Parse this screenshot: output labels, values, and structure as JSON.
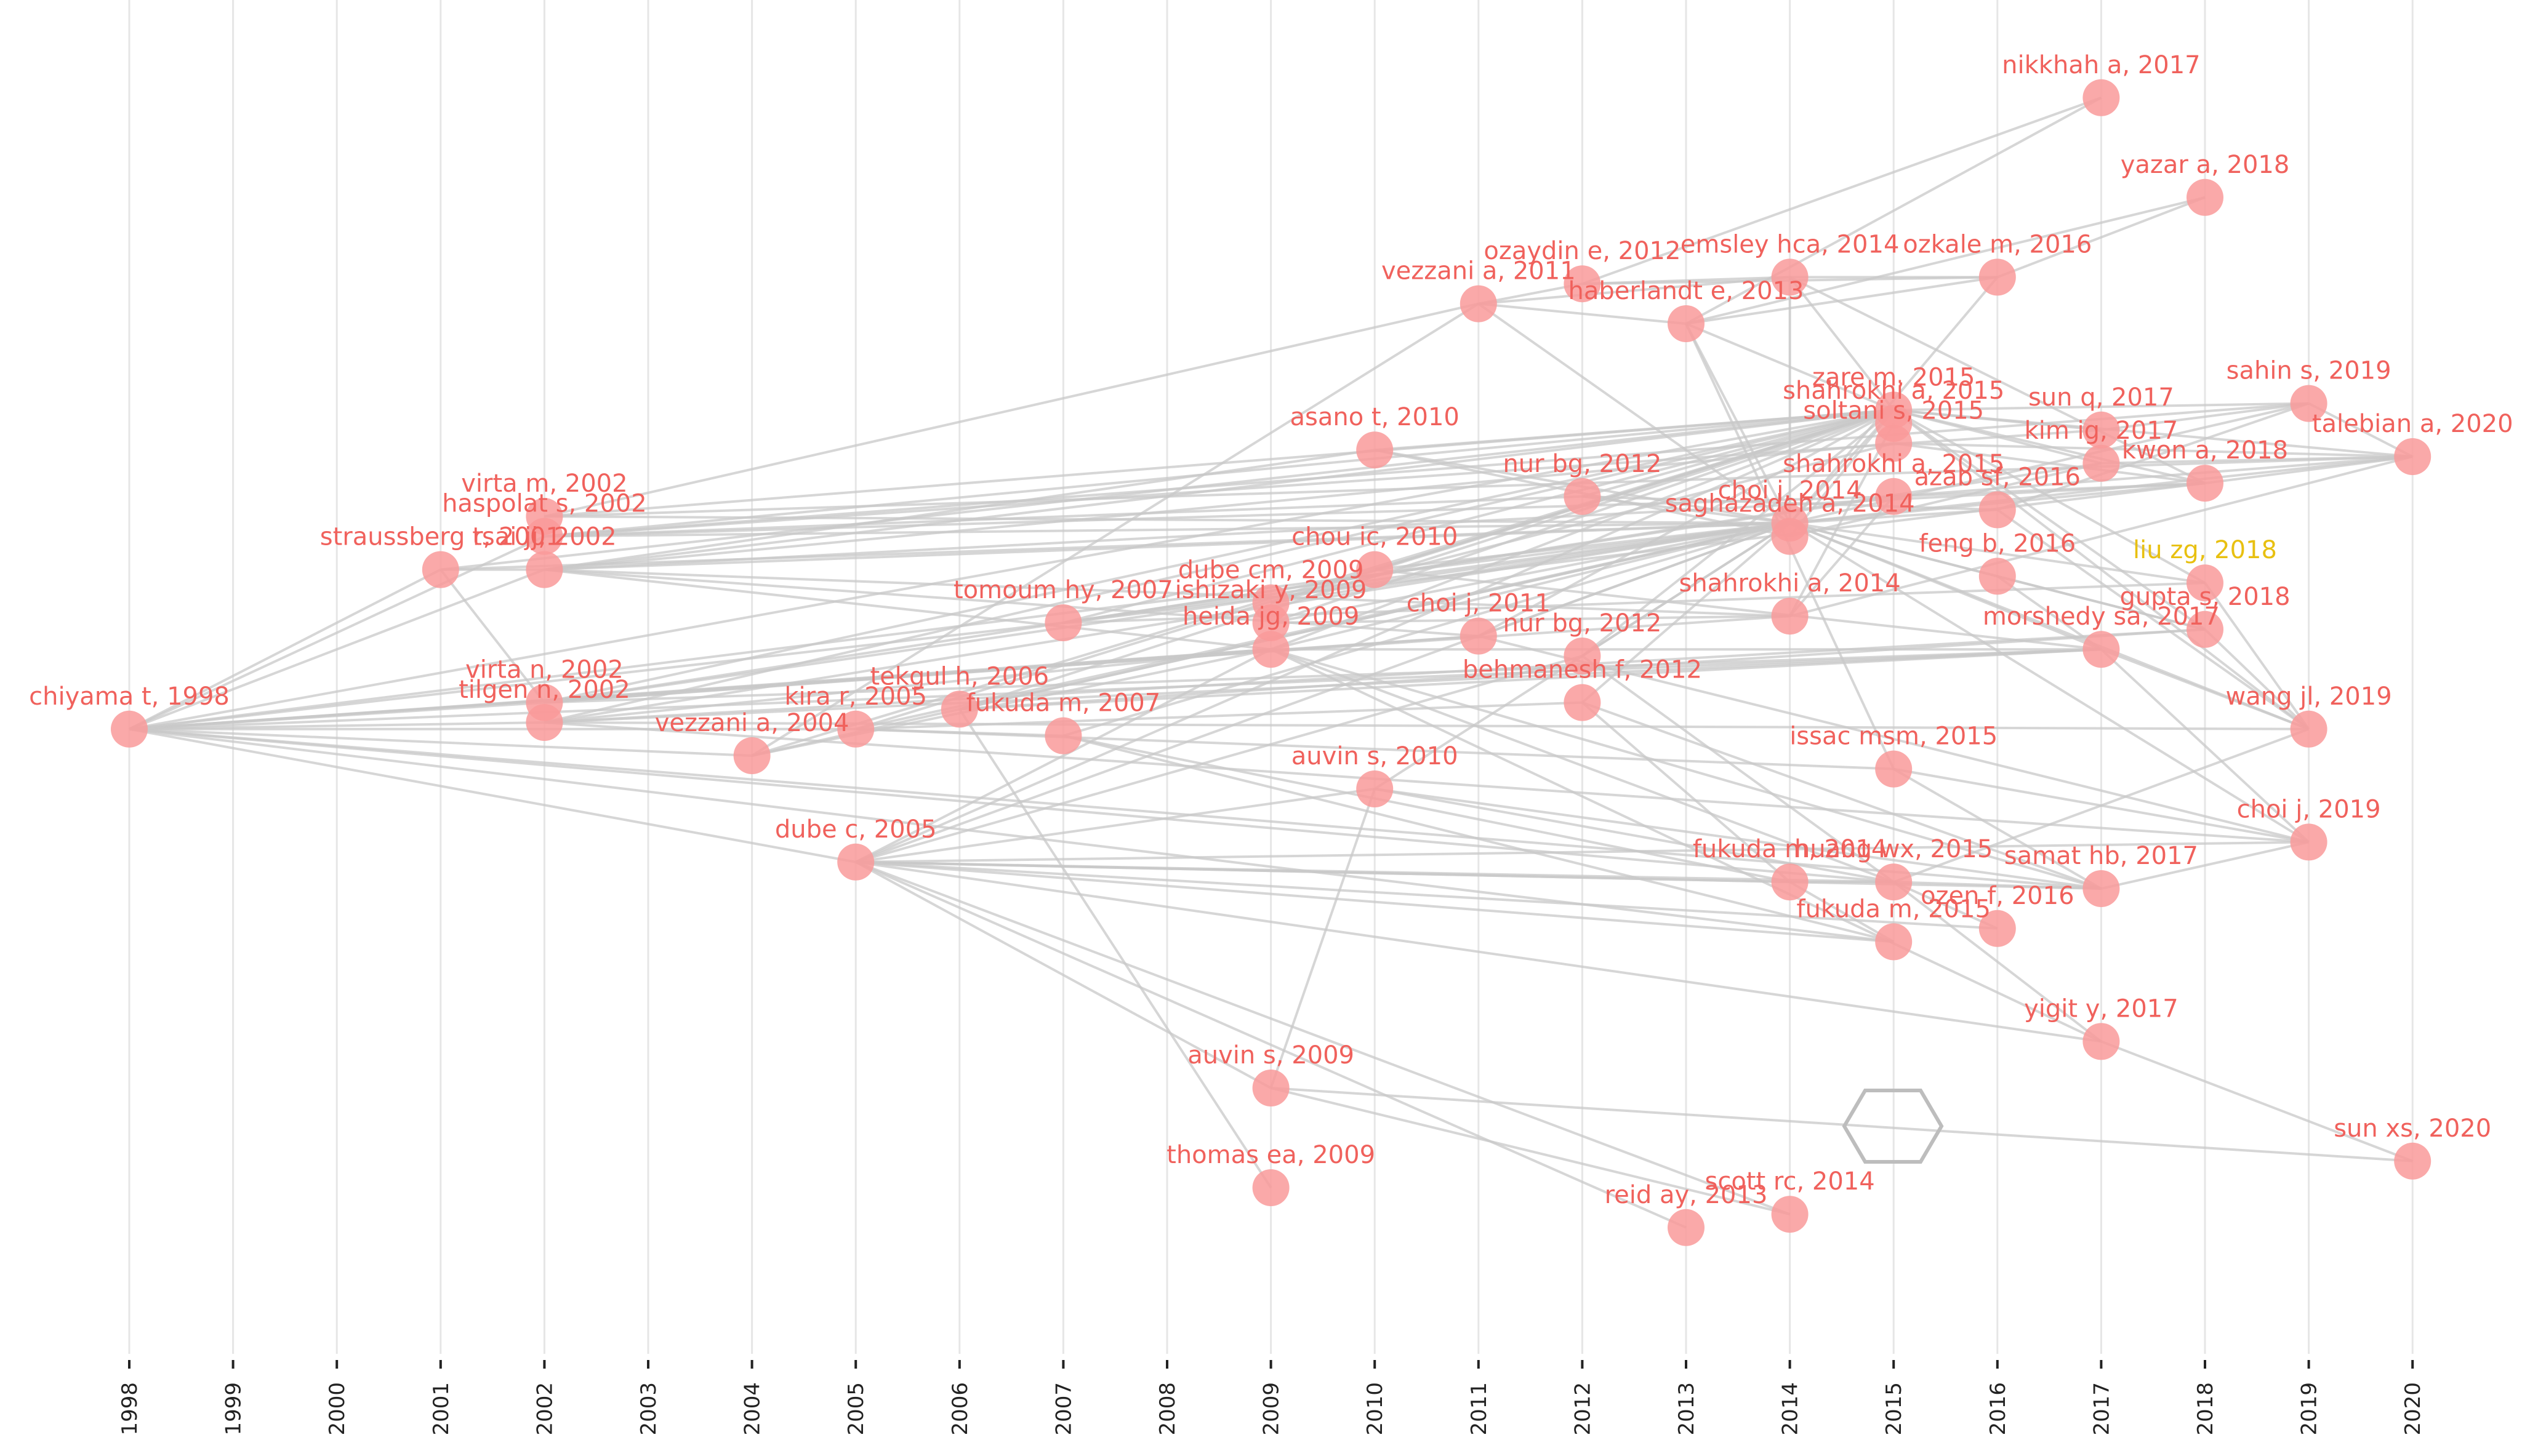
{
  "colors": {
    "node": "#f99a9a",
    "label": "#f0615c",
    "label_highlight": "#e8c010",
    "edge": "#c8c8c8",
    "grid": "#e6e6e6",
    "axis_tick": "#222222",
    "watermark": "#9ecfe0"
  },
  "chart_data": {
    "type": "scatter",
    "xlabel": "",
    "ylabel": "",
    "xlim": [
      1998,
      2020
    ],
    "ylim": [
      0,
      100
    ],
    "years": [
      "1998",
      "1999",
      "2000",
      "2001",
      "2002",
      "2003",
      "2004",
      "2005",
      "2006",
      "2007",
      "2008",
      "2009",
      "2010",
      "2011",
      "2012",
      "2013",
      "2014",
      "2015",
      "2016",
      "2017",
      "2018",
      "2019",
      "2020"
    ],
    "nodes": [
      {
        "id": "chiyama",
        "label": "chiyama t, 1998",
        "x": 1998,
        "y": 47.0
      },
      {
        "id": "straussberg",
        "label": "straussberg r, 2001",
        "x": 2001,
        "y": 59.0
      },
      {
        "id": "virta_m",
        "label": "virta m, 2002",
        "x": 2002,
        "y": 63.0
      },
      {
        "id": "haspolat",
        "label": "haspolat s, 2002",
        "x": 2002,
        "y": 61.5
      },
      {
        "id": "tsai",
        "label": "tsai jj, 2002",
        "x": 2002,
        "y": 59.0
      },
      {
        "id": "virta_n",
        "label": "virta n, 2002",
        "x": 2002,
        "y": 49.0
      },
      {
        "id": "tilgen",
        "label": "tilgen n, 2002",
        "x": 2002,
        "y": 47.5
      },
      {
        "id": "vezzani_2004",
        "label": "vezzani a, 2004",
        "x": 2004,
        "y": 45.0
      },
      {
        "id": "kira",
        "label": "kira r, 2005",
        "x": 2005,
        "y": 47.0
      },
      {
        "id": "dube_2005",
        "label": "dube c, 2005",
        "x": 2005,
        "y": 37.0
      },
      {
        "id": "tekgul",
        "label": "tekgul h, 2006",
        "x": 2006,
        "y": 48.5
      },
      {
        "id": "tomoum",
        "label": "tomoum hy, 2007",
        "x": 2007,
        "y": 55.0
      },
      {
        "id": "fukuda_2007",
        "label": "fukuda m, 2007",
        "x": 2007,
        "y": 46.5
      },
      {
        "id": "dube_cm",
        "label": "dube cm, 2009",
        "x": 2009,
        "y": 56.5
      },
      {
        "id": "heida",
        "label": "heida jg, 2009",
        "x": 2009,
        "y": 53.0
      },
      {
        "id": "ishizaki",
        "label": "ishizaki y, 2009",
        "x": 2009,
        "y": 55.0
      },
      {
        "id": "auvin_2009",
        "label": "auvin s, 2009",
        "x": 2009,
        "y": 20.0
      },
      {
        "id": "thomas",
        "label": "thomas ea, 2009",
        "x": 2009,
        "y": 12.5
      },
      {
        "id": "asano",
        "label": "asano t, 2010",
        "x": 2010,
        "y": 68.0
      },
      {
        "id": "chou",
        "label": "chou ic, 2010",
        "x": 2010,
        "y": 59.0
      },
      {
        "id": "auvin_2010",
        "label": "auvin s, 2010",
        "x": 2010,
        "y": 42.5
      },
      {
        "id": "vezzani_2011",
        "label": "vezzani a, 2011",
        "x": 2011,
        "y": 79.0
      },
      {
        "id": "choi_2011",
        "label": "choi j, 2011",
        "x": 2011,
        "y": 54.0
      },
      {
        "id": "ozaydin",
        "label": "ozaydin e, 2012",
        "x": 2012,
        "y": 80.5
      },
      {
        "id": "nur_2012a",
        "label": "nur bg, 2012",
        "x": 2012,
        "y": 64.5
      },
      {
        "id": "nur_2012b",
        "label": "nur bg, 2012",
        "x": 2012,
        "y": 52.5
      },
      {
        "id": "behmanesh",
        "label": "behmanesh f, 2012",
        "x": 2012,
        "y": 49.0
      },
      {
        "id": "haberlandt",
        "label": "haberlandt e, 2013",
        "x": 2013,
        "y": 77.5
      },
      {
        "id": "reid",
        "label": "reid ay, 2013",
        "x": 2013,
        "y": 9.5
      },
      {
        "id": "emsley",
        "label": "emsley hca, 2014",
        "x": 2014,
        "y": 81.0
      },
      {
        "id": "saghazadeh",
        "label": "saghazadeh a, 2014",
        "x": 2014,
        "y": 61.5
      },
      {
        "id": "choi_2014",
        "label": "choi j, 2014",
        "x": 2014,
        "y": 62.5
      },
      {
        "id": "shahrokhi_2014",
        "label": "shahrokhi a, 2014",
        "x": 2014,
        "y": 55.5
      },
      {
        "id": "fukuda_2014",
        "label": "fukuda m, 2014",
        "x": 2014,
        "y": 35.5
      },
      {
        "id": "scott",
        "label": "scott rc, 2014",
        "x": 2014,
        "y": 10.5
      },
      {
        "id": "zare",
        "label": "zare m, 2015",
        "x": 2015,
        "y": 71.0
      },
      {
        "id": "shahrokhi_2015a",
        "label": "shahrokhi a, 2015",
        "x": 2015,
        "y": 70.0
      },
      {
        "id": "soltani",
        "label": "soltani s, 2015",
        "x": 2015,
        "y": 68.5
      },
      {
        "id": "shahrokhi_2015b",
        "label": "shahrokhi a, 2015",
        "x": 2015,
        "y": 64.5
      },
      {
        "id": "issac",
        "label": "issac msm, 2015",
        "x": 2015,
        "y": 44.0
      },
      {
        "id": "huang",
        "label": "huang wx, 2015",
        "x": 2015,
        "y": 35.5
      },
      {
        "id": "fukuda_2015",
        "label": "fukuda m, 2015",
        "x": 2015,
        "y": 31.0
      },
      {
        "id": "ozkale",
        "label": "ozkale m, 2016",
        "x": 2016,
        "y": 81.0
      },
      {
        "id": "azab",
        "label": "azab sf, 2016",
        "x": 2016,
        "y": 63.5
      },
      {
        "id": "feng",
        "label": "feng b, 2016",
        "x": 2016,
        "y": 58.5
      },
      {
        "id": "ozen",
        "label": "ozen f, 2016",
        "x": 2016,
        "y": 32.0
      },
      {
        "id": "nikkhah",
        "label": "nikkhah a, 2017",
        "x": 2017,
        "y": 94.5
      },
      {
        "id": "sun_q",
        "label": "sun q, 2017",
        "x": 2017,
        "y": 69.5
      },
      {
        "id": "kim",
        "label": "kim ig, 2017",
        "x": 2017,
        "y": 67.0
      },
      {
        "id": "morshedy",
        "label": "morshedy sa, 2017",
        "x": 2017,
        "y": 53.0
      },
      {
        "id": "samat",
        "label": "samat hb, 2017",
        "x": 2017,
        "y": 35.0
      },
      {
        "id": "yigit",
        "label": "yigit y, 2017",
        "x": 2017,
        "y": 23.5
      },
      {
        "id": "yazar",
        "label": "yazar a, 2018",
        "x": 2018,
        "y": 87.0
      },
      {
        "id": "kwon",
        "label": "kwon a, 2018",
        "x": 2018,
        "y": 65.5
      },
      {
        "id": "liu",
        "label": "liu zg, 2018",
        "x": 2018,
        "y": 58.0,
        "highlight": true
      },
      {
        "id": "gupta",
        "label": "gupta s, 2018",
        "x": 2018,
        "y": 54.5
      },
      {
        "id": "sahin",
        "label": "sahin s, 2019",
        "x": 2019,
        "y": 71.5
      },
      {
        "id": "wang",
        "label": "wang jl, 2019",
        "x": 2019,
        "y": 47.0
      },
      {
        "id": "choi_2019",
        "label": "choi j, 2019",
        "x": 2019,
        "y": 38.5
      },
      {
        "id": "talebian",
        "label": "talebian a, 2020",
        "x": 2020,
        "y": 67.5
      },
      {
        "id": "sun_xs",
        "label": "sun xs, 2020",
        "x": 2020,
        "y": 14.5
      }
    ],
    "edges": [
      [
        "chiyama",
        "straussberg"
      ],
      [
        "chiyama",
        "haspolat"
      ],
      [
        "chiyama",
        "tsai"
      ],
      [
        "chiyama",
        "virta_n"
      ],
      [
        "chiyama",
        "tilgen"
      ],
      [
        "chiyama",
        "vezzani_2004"
      ],
      [
        "chiyama",
        "kira"
      ],
      [
        "chiyama",
        "dube_2005"
      ],
      [
        "chiyama",
        "tomoum"
      ],
      [
        "chiyama",
        "heida"
      ],
      [
        "chiyama",
        "choi_2014"
      ],
      [
        "chiyama",
        "zare"
      ],
      [
        "chiyama",
        "shahrokhi_2014"
      ],
      [
        "chiyama",
        "morshedy"
      ],
      [
        "chiyama",
        "fukuda_2015"
      ],
      [
        "chiyama",
        "samat"
      ],
      [
        "chiyama",
        "huang"
      ],
      [
        "chiyama",
        "choi_2011"
      ],
      [
        "straussberg",
        "tsai"
      ],
      [
        "straussberg",
        "virta_n"
      ],
      [
        "straussberg",
        "choi_2014"
      ],
      [
        "straussberg",
        "zare"
      ],
      [
        "virta_m",
        "choi_2014"
      ],
      [
        "virta_m",
        "zare"
      ],
      [
        "virta_m",
        "vezzani_2011"
      ],
      [
        "virta_m",
        "talebian"
      ],
      [
        "haspolat",
        "choi_2014"
      ],
      [
        "haspolat",
        "zare"
      ],
      [
        "haspolat",
        "sun_q"
      ],
      [
        "haspolat",
        "shahrokhi_2015b"
      ],
      [
        "haspolat",
        "sahin"
      ],
      [
        "haspolat",
        "nur_2012a"
      ],
      [
        "tsai",
        "choi_2014"
      ],
      [
        "tsai",
        "zare"
      ],
      [
        "tsai",
        "heida"
      ],
      [
        "tsai",
        "choi_2011"
      ],
      [
        "tsai",
        "shahrokhi_2014"
      ],
      [
        "tsai",
        "soltani"
      ],
      [
        "tsai",
        "kwon"
      ],
      [
        "tsai",
        "asano"
      ],
      [
        "virta_n",
        "choi_2014"
      ],
      [
        "virta_n",
        "zare"
      ],
      [
        "virta_n",
        "heida"
      ],
      [
        "virta_n",
        "choi_2011"
      ],
      [
        "virta_n",
        "morshedy"
      ],
      [
        "virta_n",
        "kim"
      ],
      [
        "tilgen",
        "choi_2014"
      ],
      [
        "tilgen",
        "zare"
      ],
      [
        "tilgen",
        "heida"
      ],
      [
        "tilgen",
        "morshedy"
      ],
      [
        "tilgen",
        "wang"
      ],
      [
        "tilgen",
        "gupta"
      ],
      [
        "tilgen",
        "choi_2019"
      ],
      [
        "vezzani_2004",
        "choi_2014"
      ],
      [
        "vezzani_2004",
        "vezzani_2011"
      ],
      [
        "vezzani_2004",
        "zare"
      ],
      [
        "vezzani_2004",
        "heida"
      ],
      [
        "kira",
        "choi_2014"
      ],
      [
        "kira",
        "zare"
      ],
      [
        "kira",
        "fukuda_2007"
      ],
      [
        "kira",
        "behmanesh"
      ],
      [
        "kira",
        "issac"
      ],
      [
        "dube_2005",
        "choi_2014"
      ],
      [
        "dube_2005",
        "zare"
      ],
      [
        "dube_2005",
        "heida"
      ],
      [
        "dube_2005",
        "fukuda_2014"
      ],
      [
        "dube_2005",
        "huang"
      ],
      [
        "dube_2005",
        "fukuda_2015"
      ],
      [
        "dube_2005",
        "samat"
      ],
      [
        "dube_2005",
        "ozen"
      ],
      [
        "dube_2005",
        "auvin_2010"
      ],
      [
        "dube_2005",
        "nur_2012b"
      ],
      [
        "dube_2005",
        "scott"
      ],
      [
        "dube_2005",
        "reid"
      ],
      [
        "dube_2005",
        "choi_2019"
      ],
      [
        "dube_2005",
        "yigit"
      ],
      [
        "dube_2005",
        "auvin_2009"
      ],
      [
        "tekgul",
        "choi_2014"
      ],
      [
        "tekgul",
        "zare"
      ],
      [
        "tekgul",
        "morshedy"
      ],
      [
        "tekgul",
        "thomas"
      ],
      [
        "tekgul",
        "gupta"
      ],
      [
        "tomoum",
        "choi_2014"
      ],
      [
        "tomoum",
        "zare"
      ],
      [
        "tomoum",
        "kwon"
      ],
      [
        "tomoum",
        "liu"
      ],
      [
        "tomoum",
        "shahrokhi_2015b"
      ],
      [
        "fukuda_2007",
        "choi_2014"
      ],
      [
        "fukuda_2007",
        "fukuda_2014"
      ],
      [
        "fukuda_2007",
        "fukuda_2015"
      ],
      [
        "heida",
        "choi_2014"
      ],
      [
        "heida",
        "zare"
      ],
      [
        "heida",
        "morshedy"
      ],
      [
        "heida",
        "samat"
      ],
      [
        "heida",
        "yigit"
      ],
      [
        "heida",
        "huang"
      ],
      [
        "ishizaki",
        "choi_2014"
      ],
      [
        "ishizaki",
        "zare"
      ],
      [
        "ishizaki",
        "shahrokhi_2014"
      ],
      [
        "dube_cm",
        "choi_2014"
      ],
      [
        "dube_cm",
        "zare"
      ],
      [
        "dube_cm",
        "soltani"
      ],
      [
        "auvin_2009",
        "auvin_2010"
      ],
      [
        "auvin_2009",
        "sun_xs"
      ],
      [
        "auvin_2009",
        "scott"
      ],
      [
        "asano",
        "choi_2014"
      ],
      [
        "asano",
        "zare"
      ],
      [
        "asano",
        "saghazadeh"
      ],
      [
        "chou",
        "choi_2014"
      ],
      [
        "chou",
        "zare"
      ],
      [
        "chou",
        "morshedy"
      ],
      [
        "auvin_2010",
        "choi_2014"
      ],
      [
        "auvin_2010",
        "huang"
      ],
      [
        "auvin_2010",
        "samat"
      ],
      [
        "vezzani_2011",
        "choi_2014"
      ],
      [
        "vezzani_2011",
        "haberlandt"
      ],
      [
        "vezzani_2011",
        "ozaydin"
      ],
      [
        "vezzani_2011",
        "emsley"
      ],
      [
        "choi_2011",
        "choi_2014"
      ],
      [
        "choi_2011",
        "choi_2019"
      ],
      [
        "choi_2011",
        "zare"
      ],
      [
        "ozaydin",
        "nikkhah"
      ],
      [
        "ozaydin",
        "ozkale"
      ],
      [
        "ozaydin",
        "emsley"
      ],
      [
        "nur_2012a",
        "choi_2014"
      ],
      [
        "nur_2012a",
        "zare"
      ],
      [
        "nur_2012a",
        "azab"
      ],
      [
        "nur_2012b",
        "choi_2014"
      ],
      [
        "nur_2012b",
        "zare"
      ],
      [
        "nur_2012b",
        "huang"
      ],
      [
        "behmanesh",
        "choi_2014"
      ],
      [
        "behmanesh",
        "fukuda_2014"
      ],
      [
        "behmanesh",
        "samat"
      ],
      [
        "haberlandt",
        "choi_2014"
      ],
      [
        "haberlandt",
        "zare"
      ],
      [
        "haberlandt",
        "ozkale"
      ],
      [
        "haberlandt",
        "yazar"
      ],
      [
        "haberlandt",
        "issac"
      ],
      [
        "emsley",
        "zare"
      ],
      [
        "emsley",
        "kwon"
      ],
      [
        "emsley",
        "choi_2014"
      ],
      [
        "choi_2014",
        "zare"
      ],
      [
        "choi_2014",
        "talebian"
      ],
      [
        "choi_2014",
        "sahin"
      ],
      [
        "choi_2014",
        "kwon"
      ],
      [
        "choi_2014",
        "wang"
      ],
      [
        "choi_2014",
        "choi_2019"
      ],
      [
        "choi_2014",
        "morshedy"
      ],
      [
        "choi_2014",
        "gupta"
      ],
      [
        "choi_2014",
        "liu"
      ],
      [
        "choi_2014",
        "feng"
      ],
      [
        "choi_2014",
        "azab"
      ],
      [
        "choi_2014",
        "ozkale"
      ],
      [
        "saghazadeh",
        "zare"
      ],
      [
        "saghazadeh",
        "kim"
      ],
      [
        "shahrokhi_2014",
        "shahrokhi_2015a"
      ],
      [
        "shahrokhi_2014",
        "shahrokhi_2015b"
      ],
      [
        "shahrokhi_2014",
        "talebian"
      ],
      [
        "fukuda_2014",
        "fukuda_2015"
      ],
      [
        "fukuda_2014",
        "huang"
      ],
      [
        "zare",
        "sun_q"
      ],
      [
        "zare",
        "sahin"
      ],
      [
        "zare",
        "talebian"
      ],
      [
        "zare",
        "kwon"
      ],
      [
        "zare",
        "kim"
      ],
      [
        "zare",
        "gupta"
      ],
      [
        "zare",
        "wang"
      ],
      [
        "zare",
        "liu"
      ],
      [
        "soltani",
        "kwon"
      ],
      [
        "soltani",
        "talebian"
      ],
      [
        "shahrokhi_2015b",
        "talebian"
      ],
      [
        "shahrokhi_2015b",
        "kwon"
      ],
      [
        "issac",
        "samat"
      ],
      [
        "issac",
        "choi_2019"
      ],
      [
        "huang",
        "samat"
      ],
      [
        "huang",
        "yigit"
      ],
      [
        "huang",
        "ozen"
      ],
      [
        "huang",
        "wang"
      ],
      [
        "ozkale",
        "emsley"
      ],
      [
        "feng",
        "gupta"
      ],
      [
        "feng",
        "morshedy"
      ],
      [
        "azab",
        "wang"
      ],
      [
        "azab",
        "sahin"
      ],
      [
        "sun_q",
        "sahin"
      ],
      [
        "kim",
        "talebian"
      ],
      [
        "morshedy",
        "wang"
      ],
      [
        "morshedy",
        "choi_2019"
      ],
      [
        "samat",
        "choi_2019"
      ],
      [
        "yigit",
        "sun_xs"
      ],
      [
        "gupta",
        "wang"
      ],
      [
        "liu",
        "wang"
      ],
      [
        "kwon",
        "talebian"
      ],
      [
        "sahin",
        "talebian"
      ],
      [
        "nikkhah",
        "haberlandt"
      ],
      [
        "yazar",
        "ozkale"
      ]
    ]
  }
}
